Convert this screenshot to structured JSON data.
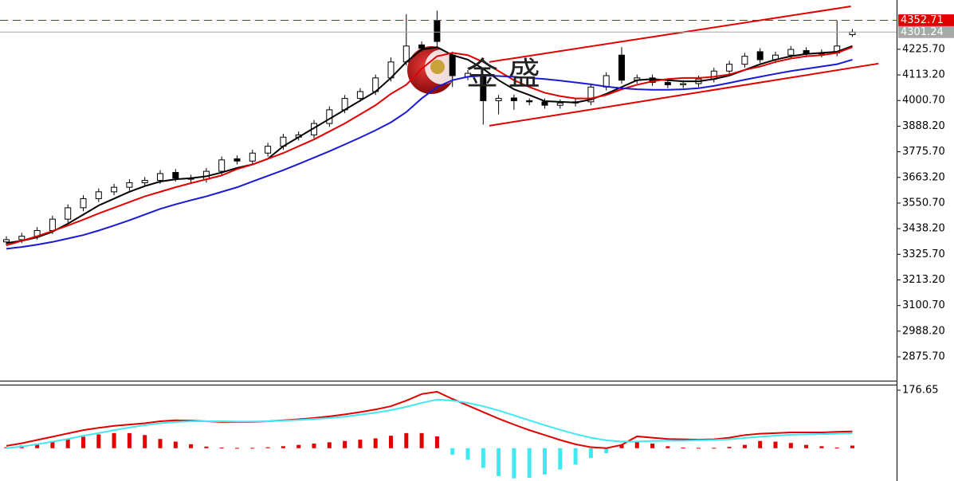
{
  "chart_data": [
    {
      "type": "candlestick",
      "open": [
        3380,
        3390,
        3405,
        3430,
        3480,
        3530,
        3570,
        3600,
        3620,
        3640,
        3650,
        3685,
        3660,
        3655,
        3690,
        3745,
        3735,
        3770,
        3800,
        3840,
        3850,
        3900,
        3960,
        4010,
        4040,
        4100,
        4170,
        4245,
        4350,
        4200,
        4105,
        4110,
        4000,
        4012,
        4000,
        3995,
        3980,
        3990,
        3995,
        4060,
        4200,
        4090,
        4100,
        4080,
        4070,
        4075,
        4095,
        4130,
        4160,
        4215,
        4180,
        4200,
        4220,
        4205,
        4210,
        4290
      ],
      "high": [
        3405,
        3420,
        3445,
        3495,
        3545,
        3585,
        3615,
        3635,
        3655,
        3665,
        3695,
        3700,
        3675,
        3705,
        3755,
        3760,
        3785,
        3815,
        3855,
        3865,
        3915,
        3975,
        4025,
        4055,
        4115,
        4190,
        4380,
        4260,
        4395,
        4215,
        4135,
        4115,
        4025,
        4027,
        4010,
        4010,
        4005,
        4010,
        4075,
        4125,
        4235,
        4115,
        4115,
        4095,
        4090,
        4110,
        4145,
        4175,
        4210,
        4230,
        4215,
        4240,
        4235,
        4225,
        4352.71,
        4315
      ],
      "low": [
        3365,
        3375,
        3390,
        3415,
        3465,
        3515,
        3555,
        3585,
        3605,
        3625,
        3635,
        3645,
        3640,
        3640,
        3675,
        3720,
        3720,
        3755,
        3785,
        3825,
        3835,
        3885,
        3945,
        3995,
        4025,
        4085,
        4155,
        4215,
        4230,
        4060,
        4090,
        3895,
        3940,
        3960,
        3980,
        3965,
        3965,
        3975,
        3980,
        4045,
        4075,
        4075,
        4065,
        4055,
        4055,
        4060,
        4080,
        4115,
        4145,
        4165,
        4165,
        4185,
        4190,
        4190,
        4195,
        4280
      ],
      "close": [
        3390,
        3405,
        3430,
        3480,
        3530,
        3570,
        3600,
        3620,
        3640,
        3650,
        3680,
        3660,
        3655,
        3690,
        3740,
        3735,
        3770,
        3800,
        3840,
        3850,
        3900,
        3960,
        4010,
        4040,
        4100,
        4170,
        4240,
        4230,
        4260,
        4110,
        4120,
        4000,
        4010,
        4000,
        3995,
        3980,
        3990,
        3995,
        4060,
        4110,
        4090,
        4100,
        4080,
        4070,
        4075,
        4095,
        4130,
        4160,
        4195,
        4180,
        4200,
        4225,
        4205,
        4210,
        4240,
        4301.24
      ],
      "moving_averages": [
        {
          "color": "#000000",
          "values": [
            3375,
            3385,
            3400,
            3425,
            3460,
            3500,
            3540,
            3570,
            3600,
            3625,
            3645,
            3655,
            3660,
            3668,
            3685,
            3705,
            3720,
            3745,
            3800,
            3840,
            3880,
            3920,
            3960,
            4000,
            4040,
            4100,
            4170,
            4225,
            4235,
            4200,
            4180,
            4140,
            4090,
            4050,
            4025,
            3998,
            3995,
            3992,
            4005,
            4030,
            4060,
            4090,
            4095,
            4090,
            4085,
            4085,
            4095,
            4110,
            4135,
            4160,
            4180,
            4195,
            4205,
            4210,
            4215,
            4240
          ]
        },
        {
          "color": "#e00000",
          "values": [
            3365,
            3385,
            3405,
            3428,
            3452,
            3478,
            3505,
            3530,
            3555,
            3580,
            3600,
            3620,
            3638,
            3655,
            3672,
            3700,
            3720,
            3745,
            3770,
            3800,
            3830,
            3865,
            3900,
            3940,
            3980,
            4030,
            4070,
            4140,
            4195,
            4210,
            4200,
            4170,
            4130,
            4090,
            4060,
            4035,
            4020,
            4010,
            4010,
            4025,
            4050,
            4070,
            4085,
            4095,
            4100,
            4100,
            4105,
            4115,
            4135,
            4150,
            4170,
            4185,
            4195,
            4200,
            4210,
            4235
          ]
        },
        {
          "color": "#1a1ad0",
          "values": [
            3350,
            3358,
            3368,
            3380,
            3395,
            3410,
            3430,
            3452,
            3475,
            3500,
            3525,
            3545,
            3563,
            3580,
            3600,
            3620,
            3645,
            3670,
            3695,
            3722,
            3750,
            3778,
            3808,
            3838,
            3870,
            3905,
            3950,
            4010,
            4060,
            4090,
            4105,
            4110,
            4108,
            4105,
            4100,
            4095,
            4088,
            4080,
            4072,
            4062,
            4055,
            4050,
            4048,
            4048,
            4050,
            4055,
            4065,
            4078,
            4092,
            4105,
            4118,
            4130,
            4140,
            4150,
            4160,
            4180
          ]
        }
      ],
      "trend_lines": [
        {
          "color": "#e00000",
          "x": [
            31.4,
            54.9
          ],
          "y": [
            4170,
            4414
          ]
        },
        {
          "color": "#e00000",
          "x": [
            31.4,
            56.7
          ],
          "y": [
            3890,
            4163
          ]
        }
      ],
      "price_lines": [
        {
          "value": 4352.71,
          "color": "#e00000",
          "dashed": true
        },
        {
          "value": 4301.24,
          "color": "#a8a8a8",
          "dashed": false
        }
      ],
      "watermark": "金 盛",
      "ylim": [
        2771,
        4442
      ],
      "yticks": [
        {
          "value": 2875.7,
          "label": "2875.70"
        },
        {
          "value": 2988.2,
          "label": "2988.20"
        },
        {
          "value": 3100.7,
          "label": "3100.70"
        },
        {
          "value": 3213.2,
          "label": "3213.20"
        },
        {
          "value": 3325.7,
          "label": "3325.70"
        },
        {
          "value": 3438.2,
          "label": "3438.20"
        },
        {
          "value": 3550.7,
          "label": "3550.70"
        },
        {
          "value": 3663.2,
          "label": "3663.20"
        },
        {
          "value": 3775.7,
          "label": "3775.70"
        },
        {
          "value": 3888.2,
          "label": "3888.20"
        },
        {
          "value": 4000.7,
          "label": "4000.70"
        },
        {
          "value": 4113.2,
          "label": "4113.20"
        },
        {
          "value": 4225.7,
          "label": "4225.70"
        }
      ]
    },
    {
      "type": "macd",
      "histogram": [
        3,
        8,
        14,
        20,
        28,
        35,
        42,
        46,
        46,
        40,
        28,
        20,
        12,
        5,
        2,
        1,
        1,
        3,
        6,
        10,
        14,
        18,
        22,
        26,
        30,
        38,
        46,
        46,
        36,
        -20,
        -35,
        -60,
        -85,
        -92,
        -90,
        -80,
        -65,
        -50,
        -30,
        -15,
        10,
        20,
        14,
        6,
        2,
        1,
        1,
        4,
        10,
        22,
        20,
        16,
        10,
        6,
        2,
        8
      ],
      "positive_color": "#e00000",
      "negative_color": "#40e8f0",
      "lines": [
        {
          "color": "#e00000",
          "values": [
            7,
            15,
            25,
            35,
            45,
            55,
            62,
            68,
            72,
            76,
            82,
            85,
            84,
            82,
            80,
            80,
            80,
            82,
            85,
            88,
            92,
            97,
            103,
            110,
            118,
            128,
            145,
            165,
            172,
            150,
            130,
            110,
            90,
            72,
            55,
            40,
            25,
            12,
            3,
            0,
            10,
            36,
            32,
            28,
            27,
            26,
            27,
            32,
            40,
            44,
            46,
            48,
            48,
            48,
            50,
            51
          ]
        },
        {
          "color": "#40e8f0",
          "values": [
            0,
            5,
            12,
            20,
            28,
            38,
            46,
            55,
            63,
            70,
            76,
            80,
            82,
            82,
            82,
            81,
            81,
            82,
            84,
            86,
            89,
            92,
            96,
            102,
            108,
            116,
            126,
            138,
            148,
            145,
            138,
            128,
            115,
            100,
            85,
            70,
            56,
            43,
            32,
            24,
            20,
            20,
            22,
            23,
            23,
            24,
            25,
            27,
            31,
            35,
            38,
            41,
            42,
            43,
            44,
            46
          ]
        }
      ],
      "ylim": [
        -100,
        176.65
      ],
      "yticks": [
        176.65
      ]
    }
  ]
}
